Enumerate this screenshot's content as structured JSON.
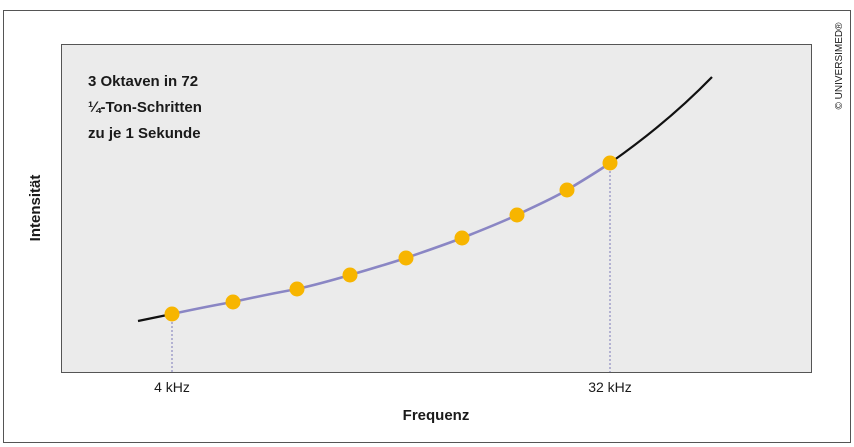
{
  "annotation": {
    "lines": [
      "3 Oktaven in 72",
      "¼-Ton-Schritten",
      "zu je 1 Sekunde"
    ]
  },
  "axes": {
    "y_label": "Intensität",
    "x_label": "Frequenz",
    "x_markers": [
      "4 kHz",
      "32 kHz"
    ]
  },
  "copyright": "© UNIVERSIMED®"
}
